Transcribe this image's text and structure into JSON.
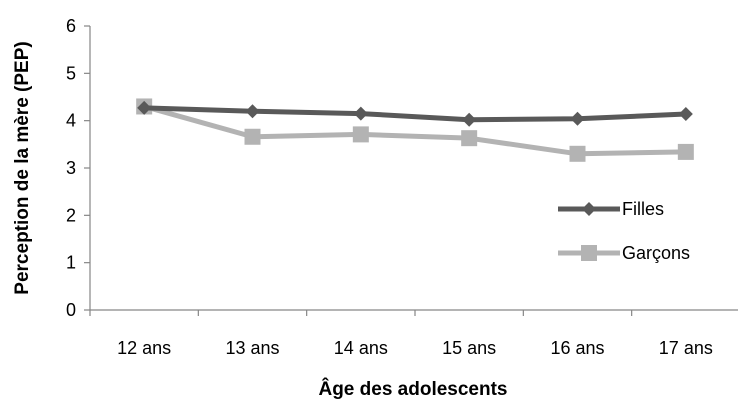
{
  "chart_data": {
    "type": "line",
    "title": "",
    "xlabel": "Âge des adolescents",
    "ylabel": "Perception de la mère (PEP)",
    "categories": [
      "12 ans",
      "13 ans",
      "14 ans",
      "15 ans",
      "16 ans",
      "17 ans"
    ],
    "ylim": [
      0,
      6
    ],
    "yticks": [
      "0",
      "1",
      "2",
      "3",
      "4",
      "5",
      "6"
    ],
    "grid": false,
    "legend_position": "right",
    "series": [
      {
        "name": "Filles",
        "values": [
          4.27,
          4.2,
          4.15,
          4.02,
          4.04,
          4.14
        ],
        "color": "#595959",
        "marker": "diamond"
      },
      {
        "name": "Garçons",
        "values": [
          4.3,
          3.66,
          3.71,
          3.63,
          3.3,
          3.34
        ],
        "color": "#b3b3b3",
        "marker": "square"
      }
    ]
  }
}
